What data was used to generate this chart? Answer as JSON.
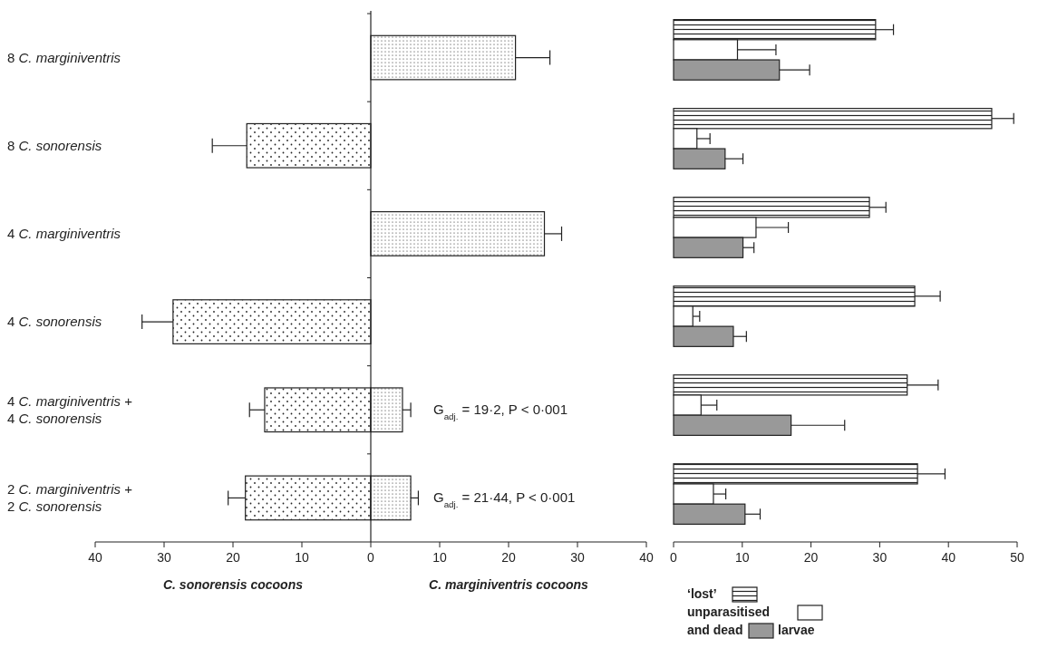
{
  "chart_data": [
    {
      "type": "bar",
      "orientation": "horizontal",
      "categories": [
        "8 C. marginiventris",
        "8 C. sonorensis",
        "4 C. marginiventris",
        "4 C. sonorensis",
        "4 C. marginiventris + 4 C. sonorensis",
        "2 C. marginiventris + 2 C. sonorensis"
      ],
      "xlim": [
        -40,
        40
      ],
      "xticks": [
        {
          "value": -40,
          "label": "40"
        },
        {
          "value": -30,
          "label": "30"
        },
        {
          "value": -20,
          "label": "20"
        },
        {
          "value": -10,
          "label": "10"
        },
        0,
        10,
        20,
        30,
        40
      ],
      "series": [
        {
          "color": "#222222",
          "values": [
            null,
            -18,
            null,
            -28.7,
            -15.4,
            -18.2
          ],
          "errors": [
            null,
            5,
            null,
            4.5,
            2.2,
            2.5
          ]
        },
        {
          "color": "#222222",
          "values": [
            21,
            null,
            25.2,
            null,
            4.6,
            5.8
          ],
          "errors": [
            5,
            null,
            2.5,
            null,
            1.2,
            1.1
          ]
        }
      ],
      "annotations": [
        "C. sonorensis cocoons",
        "C. marginiventris cocoons",
        "G$_{adj.}$ = 19·2, P < 0·001",
        "G$_{adj.}$ = 21·44, P < 0·001"
      ]
    },
    {
      "type": "bar",
      "orientation": "horizontal",
      "categories": [
        null,
        null,
        null,
        null,
        null,
        null
      ],
      "xlim": [
        0,
        50
      ],
      "xticks": [
        0,
        10,
        20,
        30,
        40,
        50
      ],
      "legend": "bottom",
      "series": [
        {
          "name": "‘lost’",
          "color": "#222222",
          "values": [
            29.4,
            46.3,
            28.5,
            35.1,
            34.0,
            35.5
          ],
          "errors": [
            2.6,
            3.2,
            2.4,
            3.7,
            4.5,
            4.0
          ]
        },
        {
          "name": "unparasitised",
          "color": "#ffffff",
          "values": [
            9.3,
            3.4,
            12.0,
            2.8,
            4.0,
            5.8
          ],
          "errors": [
            5.6,
            1.9,
            4.7,
            1.0,
            2.3,
            1.8
          ]
        },
        {
          "name": "and dead",
          "color": "#999999",
          "values": [
            15.4,
            7.5,
            10.1,
            8.7,
            17.1,
            10.4
          ],
          "errors": [
            4.4,
            2.6,
            1.6,
            1.9,
            7.8,
            2.2
          ]
        }
      ],
      "annotations": [
        "larvae"
      ]
    }
  ]
}
